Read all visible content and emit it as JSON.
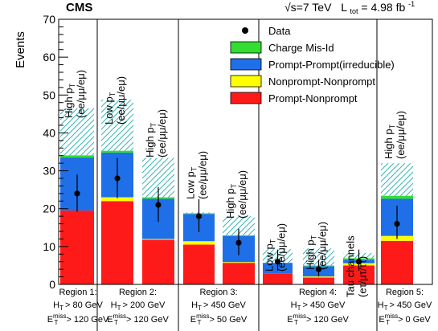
{
  "header": {
    "experiment": "CMS",
    "energy_text": "√s=7 TeV",
    "lumi_symbol": "L",
    "lumi_sub": "tot",
    "lumi_value": " = 4.98 fb",
    "lumi_sup": "-1"
  },
  "chart_data": {
    "type": "bar",
    "stacked": true,
    "ylabel": "Events",
    "ylim": [
      0,
      70
    ],
    "yticks": [
      0,
      10,
      20,
      30,
      40,
      50,
      60,
      70
    ],
    "grid": false,
    "legend_position": "top-right",
    "colors": {
      "charge_misid": "#33dd33",
      "prompt_prompt": "#1f6fe8",
      "nonprompt_nonprompt": "#ffff00",
      "prompt_nonprompt": "#ff1a1a",
      "uncertainty_hatch": "#37b5b5"
    },
    "legend": [
      {
        "key": "data",
        "label": "Data",
        "kind": "marker"
      },
      {
        "key": "charge_misid",
        "label": "Charge Mis-Id",
        "kind": "box"
      },
      {
        "key": "prompt_prompt",
        "label": "Prompt-Prompt(irreducible)",
        "kind": "box"
      },
      {
        "key": "nonprompt_nonprompt",
        "label": "Nonprompt-Nonprompt",
        "kind": "box"
      },
      {
        "key": "prompt_nonprompt",
        "label": "Prompt-Nonprompt",
        "kind": "box"
      }
    ],
    "categories": [
      {
        "label_lines": [
          "High p_T",
          "(ee/μμ/eμ)"
        ]
      },
      {
        "label_lines": [
          "Low p_T",
          "(ee/μμ/eμ)"
        ]
      },
      {
        "label_lines": [
          "High p_T",
          "(ee/μμ/eμ)"
        ]
      },
      {
        "label_lines": [
          "Low p_T",
          "(ee/μμ/eμ)"
        ]
      },
      {
        "label_lines": [
          "High p_T",
          "(ee/μμ/eμ)"
        ]
      },
      {
        "label_lines": [
          "Low p_T",
          "(ee/μμ/eμ)"
        ]
      },
      {
        "label_lines": [
          "High p_T",
          "(ee/μμ/eμ)"
        ]
      },
      {
        "label_lines": [
          "Tau channels",
          "(eτ/μτ/ττ)"
        ]
      },
      {
        "label_lines": [
          "High p_T",
          "(ee/μμ/eμ)"
        ]
      }
    ],
    "series": [
      {
        "name": "Prompt-Nonprompt",
        "key": "prompt_nonprompt",
        "values": [
          19.5,
          22.0,
          11.8,
          10.5,
          5.7,
          2.8,
          1.8,
          5.0,
          11.5
        ]
      },
      {
        "name": "Nonprompt-Nonprompt",
        "key": "nonprompt_nonprompt",
        "values": [
          0.0,
          1.0,
          0.2,
          0.9,
          0.2,
          0.0,
          0.3,
          0.6,
          1.3
        ]
      },
      {
        "name": "Prompt-Prompt(irreducible)",
        "key": "prompt_prompt",
        "values": [
          14.0,
          11.8,
          10.6,
          7.2,
          6.9,
          2.9,
          2.7,
          0.9,
          9.8
        ]
      },
      {
        "name": "Charge Mis-Id",
        "key": "charge_misid",
        "values": [
          0.6,
          0.5,
          0.4,
          0.2,
          0.2,
          0.0,
          0.2,
          0.4,
          0.8
        ]
      }
    ],
    "uncertainty_top": [
      46.5,
      48.8,
      33.4,
      19.0,
      18.0,
      9.3,
      9.5,
      8.3,
      32.0
    ],
    "data": {
      "values": [
        24,
        28,
        21,
        18,
        11,
        6,
        4,
        6,
        16
      ],
      "err_up": [
        5.0,
        5.4,
        4.7,
        4.5,
        3.7,
        3.2,
        2.5,
        3.2,
        4.8
      ],
      "err_down": [
        4.8,
        5.2,
        4.5,
        4.2,
        3.3,
        2.4,
        1.9,
        2.4,
        4.0
      ]
    },
    "regions": [
      {
        "name": "Region 1:",
        "ht": "> 80 GeV",
        "met": "> 120 GeV",
        "bins": [
          0
        ]
      },
      {
        "name": "Region 2:",
        "ht": "> 200 GeV",
        "met": "> 120 GeV",
        "bins": [
          1,
          2
        ]
      },
      {
        "name": "Region 3:",
        "ht": "> 450 GeV",
        "met": "> 50 GeV",
        "bins": [
          3,
          4
        ]
      },
      {
        "name": "Region 4:",
        "ht": "> 450 GeV",
        "met": "> 120 GeV",
        "bins": [
          5,
          6,
          7
        ]
      },
      {
        "name": "Region 5:",
        "ht": "> 450 GeV",
        "met": "> 0 GeV",
        "bins": [
          8
        ]
      }
    ]
  }
}
